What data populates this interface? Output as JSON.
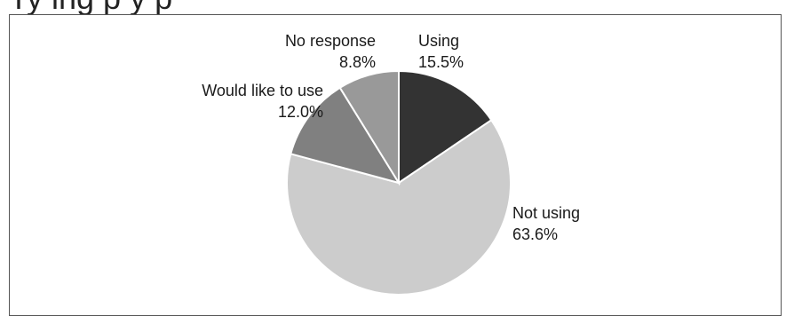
{
  "header": {
    "title_fragment": "Ty  ing p                y              p"
  },
  "chart_data": {
    "type": "pie",
    "slices": [
      {
        "label": "Using",
        "percent_label": "15.5%",
        "value": 15.5,
        "color": "#333333"
      },
      {
        "label": "Not using",
        "percent_label": "63.6%",
        "value": 63.6,
        "color": "#cccccc"
      },
      {
        "label": "Would like to use",
        "percent_label": "12.0%",
        "value": 12.0,
        "color": "#808080"
      },
      {
        "label": "No response",
        "percent_label": "8.8%",
        "value": 8.8,
        "color": "#999999"
      }
    ]
  }
}
